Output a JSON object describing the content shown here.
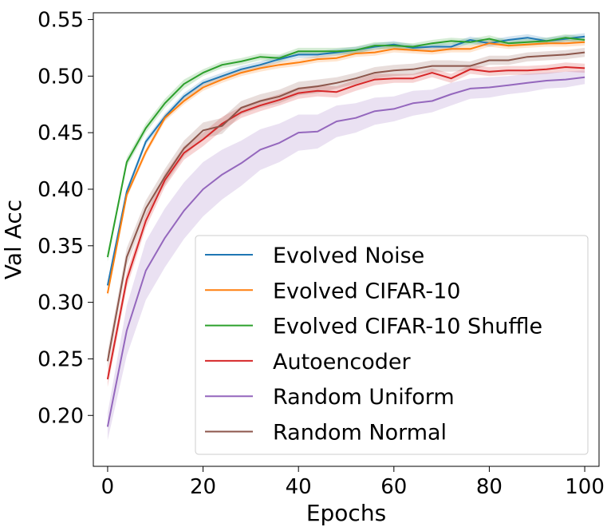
{
  "chart_data": {
    "type": "line",
    "xlabel": "Epochs",
    "ylabel": "Val Acc",
    "xlim": [
      -3,
      103
    ],
    "ylim": [
      0.155,
      0.556
    ],
    "xticks": [
      0,
      20,
      40,
      60,
      80,
      100
    ],
    "yticks": [
      0.2,
      0.25,
      0.3,
      0.35,
      0.4,
      0.45,
      0.5,
      0.55
    ],
    "xtick_labels": [
      "0",
      "20",
      "40",
      "60",
      "80",
      "100"
    ],
    "ytick_labels": [
      "0.20",
      "0.25",
      "0.30",
      "0.35",
      "0.40",
      "0.45",
      "0.50",
      "0.55"
    ],
    "grid": false,
    "legend_position": "lower-right",
    "x": [
      0,
      4,
      8,
      12,
      16,
      20,
      24,
      28,
      32,
      36,
      40,
      44,
      48,
      52,
      56,
      60,
      64,
      68,
      72,
      76,
      80,
      84,
      88,
      92,
      96,
      100
    ],
    "series": [
      {
        "name": "Evolved Noise",
        "color": "#1f77b4",
        "values": [
          0.315,
          0.398,
          0.442,
          0.464,
          0.482,
          0.494,
          0.5,
          0.506,
          0.51,
          0.515,
          0.519,
          0.519,
          0.521,
          0.523,
          0.526,
          0.528,
          0.525,
          0.526,
          0.526,
          0.532,
          0.529,
          0.532,
          0.534,
          0.531,
          0.533,
          0.535
        ],
        "band": [
          0.003,
          0.003,
          0.003,
          0.003,
          0.003,
          0.003,
          0.003,
          0.003,
          0.003,
          0.003,
          0.003,
          0.003,
          0.003,
          0.003,
          0.003,
          0.003,
          0.003,
          0.003,
          0.003,
          0.003,
          0.003,
          0.003,
          0.003,
          0.003,
          0.003,
          0.003
        ]
      },
      {
        "name": "Evolved CIFAR-10",
        "color": "#ff7f0e",
        "values": [
          0.308,
          0.395,
          0.433,
          0.463,
          0.478,
          0.49,
          0.497,
          0.503,
          0.507,
          0.51,
          0.512,
          0.515,
          0.516,
          0.52,
          0.521,
          0.524,
          0.523,
          0.522,
          0.524,
          0.524,
          0.529,
          0.527,
          0.528,
          0.529,
          0.529,
          0.53
        ],
        "band": [
          0.003,
          0.003,
          0.003,
          0.003,
          0.003,
          0.003,
          0.003,
          0.003,
          0.003,
          0.003,
          0.003,
          0.003,
          0.003,
          0.003,
          0.003,
          0.003,
          0.003,
          0.003,
          0.003,
          0.003,
          0.003,
          0.003,
          0.003,
          0.003,
          0.003,
          0.003
        ]
      },
      {
        "name": "Evolved CIFAR-10 Shuffle",
        "color": "#2ca02c",
        "values": [
          0.34,
          0.424,
          0.454,
          0.476,
          0.493,
          0.503,
          0.51,
          0.513,
          0.517,
          0.516,
          0.522,
          0.522,
          0.522,
          0.523,
          0.527,
          0.527,
          0.526,
          0.529,
          0.531,
          0.53,
          0.533,
          0.529,
          0.53,
          0.531,
          0.534,
          0.532
        ],
        "band": [
          0.004,
          0.004,
          0.004,
          0.004,
          0.004,
          0.003,
          0.003,
          0.003,
          0.003,
          0.003,
          0.003,
          0.003,
          0.003,
          0.003,
          0.003,
          0.003,
          0.003,
          0.003,
          0.003,
          0.003,
          0.003,
          0.003,
          0.003,
          0.003,
          0.003,
          0.003
        ]
      },
      {
        "name": "Autoencoder",
        "color": "#d62728",
        "values": [
          0.232,
          0.32,
          0.372,
          0.408,
          0.432,
          0.444,
          0.458,
          0.468,
          0.474,
          0.479,
          0.485,
          0.487,
          0.486,
          0.492,
          0.497,
          0.498,
          0.498,
          0.503,
          0.498,
          0.506,
          0.504,
          0.505,
          0.505,
          0.506,
          0.508,
          0.507
        ],
        "band": [
          0.007,
          0.007,
          0.006,
          0.006,
          0.006,
          0.006,
          0.006,
          0.005,
          0.005,
          0.005,
          0.005,
          0.005,
          0.005,
          0.005,
          0.005,
          0.004,
          0.004,
          0.004,
          0.004,
          0.004,
          0.004,
          0.004,
          0.004,
          0.004,
          0.004,
          0.004
        ]
      },
      {
        "name": "Random Uniform",
        "color": "#9467bd",
        "values": [
          0.19,
          0.275,
          0.328,
          0.357,
          0.381,
          0.4,
          0.413,
          0.423,
          0.435,
          0.441,
          0.45,
          0.451,
          0.46,
          0.463,
          0.469,
          0.471,
          0.476,
          0.478,
          0.484,
          0.489,
          0.49,
          0.492,
          0.494,
          0.496,
          0.497,
          0.499
        ],
        "band": [
          0.012,
          0.022,
          0.026,
          0.026,
          0.025,
          0.024,
          0.022,
          0.02,
          0.018,
          0.017,
          0.016,
          0.015,
          0.014,
          0.013,
          0.012,
          0.011,
          0.011,
          0.01,
          0.01,
          0.009,
          0.009,
          0.008,
          0.008,
          0.007,
          0.007,
          0.006
        ]
      },
      {
        "name": "Random Normal",
        "color": "#8c564b",
        "values": [
          0.248,
          0.34,
          0.383,
          0.411,
          0.436,
          0.452,
          0.456,
          0.472,
          0.478,
          0.482,
          0.489,
          0.491,
          0.494,
          0.498,
          0.503,
          0.505,
          0.506,
          0.509,
          0.509,
          0.509,
          0.514,
          0.514,
          0.517,
          0.518,
          0.519,
          0.521
        ],
        "band": [
          0.008,
          0.008,
          0.007,
          0.007,
          0.007,
          0.007,
          0.007,
          0.006,
          0.006,
          0.006,
          0.006,
          0.006,
          0.005,
          0.005,
          0.005,
          0.005,
          0.005,
          0.005,
          0.005,
          0.004,
          0.004,
          0.004,
          0.004,
          0.004,
          0.004,
          0.004
        ]
      }
    ]
  }
}
